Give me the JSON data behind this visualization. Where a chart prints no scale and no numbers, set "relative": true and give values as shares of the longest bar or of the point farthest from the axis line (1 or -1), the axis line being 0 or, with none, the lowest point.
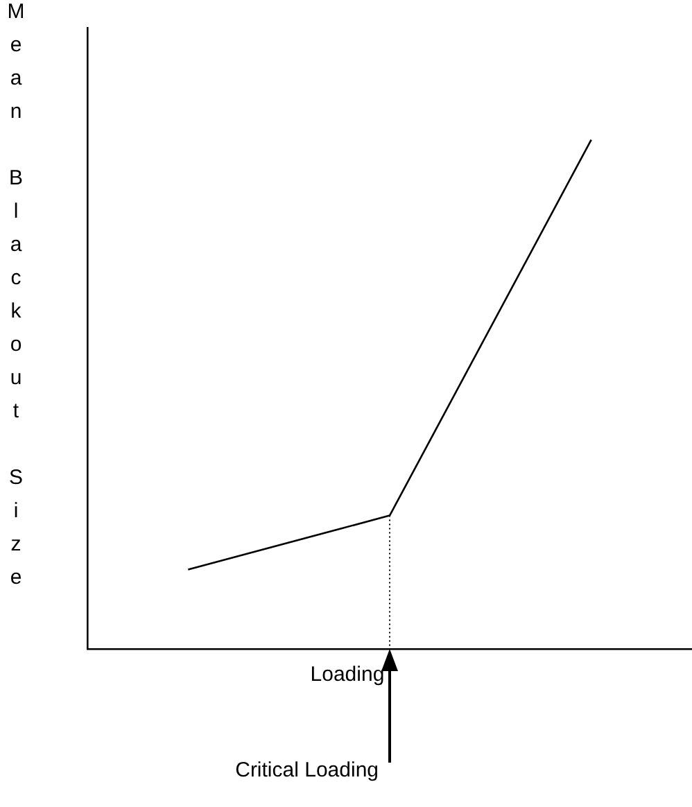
{
  "chart_data": {
    "type": "line",
    "xlabel": "Loading",
    "ylabel": "Mean Blackout Size",
    "relative": true,
    "tick_labels": false,
    "grid": false,
    "legend": false,
    "marker": "none",
    "line_style": "solid",
    "categories": [
      null,
      null,
      null
    ],
    "series": [
      {
        "color": "#000000",
        "values": [
          0.156,
          0.262,
          1
        ]
      }
    ],
    "annotations": [
      "Critical Loading"
    ]
  }
}
